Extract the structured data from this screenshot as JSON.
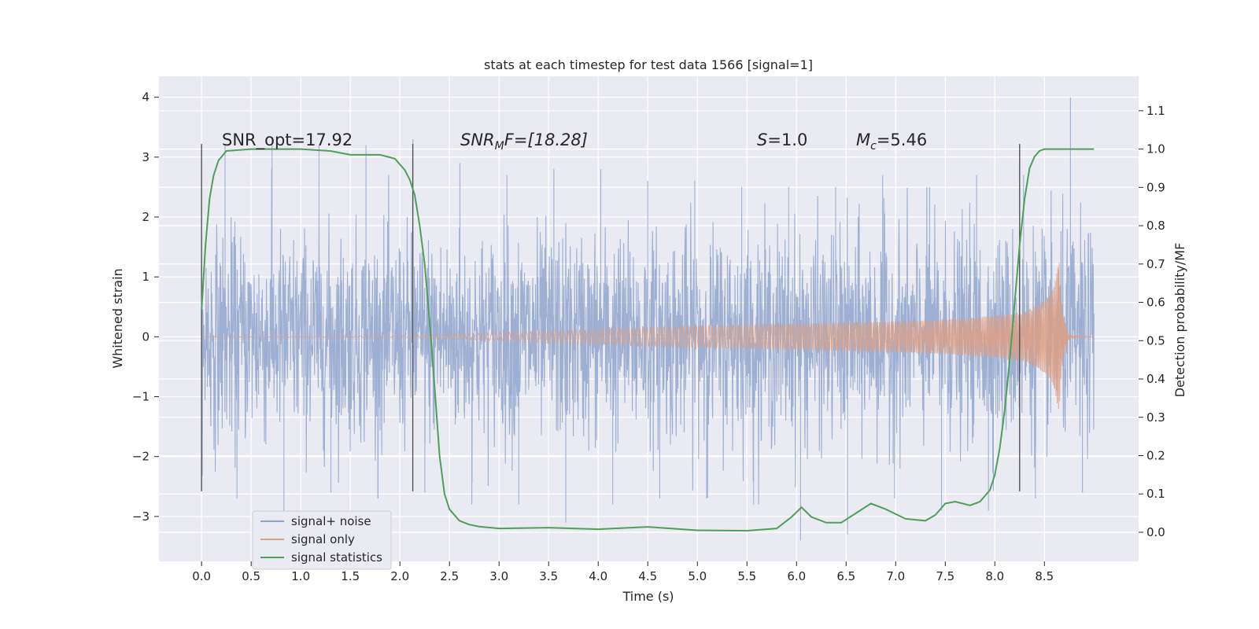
{
  "chart_data": {
    "type": "line",
    "title": "stats at each timestep for test data 1566 [signal=1]",
    "xlabel": "Time (s)",
    "ylabel": "Whitened strain",
    "y2label": "Detection probability/MF",
    "xlim": [
      -0.43,
      9.45
    ],
    "ylim": [
      -3.75,
      4.35
    ],
    "y2lim": [
      -0.076,
      1.19
    ],
    "x_ticks": [
      "0.0",
      "0.5",
      "1.0",
      "1.5",
      "2.0",
      "2.5",
      "3.0",
      "3.5",
      "4.0",
      "4.5",
      "5.0",
      "5.5",
      "6.0",
      "6.5",
      "7.0",
      "7.5",
      "8.0",
      "8.5"
    ],
    "y_ticks": [
      "4",
      "3",
      "2",
      "1",
      "0",
      "−1",
      "−2",
      "−3"
    ],
    "y2_ticks": [
      "1.1",
      "1.0",
      "0.9",
      "0.8",
      "0.7",
      "0.6",
      "0.5",
      "0.4",
      "0.3",
      "0.2",
      "0.1",
      "0.0"
    ],
    "grid": true,
    "legend_position": "bottom-left",
    "annotations": {
      "snr_opt": "SNR_opt=17.92",
      "snr_mf_prefix": "SNR",
      "snr_mf_sub": "M",
      "snr_mf_suffix": "F=[18.28]",
      "s_symbol": "S",
      "s_value": "=1.0",
      "mc_symbol": "M",
      "mc_sub": "c",
      "mc_value": "=5.46"
    },
    "vlines_x": [
      0.0,
      2.13,
      8.25
    ],
    "series": [
      {
        "name": "signal+ noise",
        "color": "#8fa5cc",
        "x_range": [
          0.0,
          9.0
        ],
        "amplitude_std": 0.95,
        "envelope_max": [
          3.2,
          3.3,
          3.2,
          3.2,
          3.3,
          2.9,
          2.7,
          2.8,
          2.8,
          2.6,
          2.6,
          2.5,
          2.5,
          2.5,
          2.7,
          2.5,
          2.7,
          2.7,
          4.0
        ],
        "envelope_min": [
          -2.7,
          -2.9,
          -2.6,
          -2.7,
          -2.6,
          -2.8,
          -2.8,
          -3.1,
          -2.8,
          -2.7,
          -2.7,
          -2.8,
          -3.4,
          -3.3,
          -2.7,
          -2.9,
          -2.9,
          -2.7,
          -2.6
        ]
      },
      {
        "name": "signal only",
        "color": "#dd9f84",
        "x_range": [
          0.0,
          9.0
        ],
        "envelope": {
          "x": [
            0.0,
            2.0,
            3.0,
            4.0,
            5.0,
            6.0,
            7.0,
            7.5,
            8.0,
            8.3,
            8.5,
            8.6,
            8.65,
            8.68,
            8.75,
            9.0
          ],
          "amp": [
            0.0,
            0.01,
            0.07,
            0.13,
            0.18,
            0.22,
            0.26,
            0.29,
            0.35,
            0.42,
            0.6,
            0.85,
            1.3,
            0.4,
            0.02,
            0.0
          ]
        }
      },
      {
        "name": "signal statistics",
        "color": "#4f9e5b",
        "x": [
          0.0,
          0.04,
          0.08,
          0.12,
          0.17,
          0.25,
          0.5,
          1.0,
          1.3,
          1.5,
          1.6,
          1.8,
          1.95,
          2.0,
          2.05,
          2.1,
          2.15,
          2.2,
          2.25,
          2.3,
          2.35,
          2.4,
          2.45,
          2.5,
          2.6,
          2.7,
          2.8,
          3.0,
          3.5,
          4.0,
          4.5,
          5.0,
          5.5,
          5.8,
          5.95,
          6.05,
          6.15,
          6.3,
          6.45,
          6.6,
          6.75,
          6.9,
          7.1,
          7.3,
          7.4,
          7.5,
          7.6,
          7.75,
          7.85,
          7.95,
          8.0,
          8.05,
          8.1,
          8.15,
          8.2,
          8.25,
          8.3,
          8.35,
          8.4,
          8.45,
          8.5,
          9.0
        ],
        "y": [
          0.58,
          0.75,
          0.87,
          0.93,
          0.97,
          0.995,
          1.0,
          1.0,
          0.995,
          0.985,
          0.985,
          0.985,
          0.975,
          0.96,
          0.945,
          0.92,
          0.88,
          0.8,
          0.7,
          0.55,
          0.38,
          0.2,
          0.1,
          0.06,
          0.03,
          0.02,
          0.015,
          0.01,
          0.012,
          0.008,
          0.014,
          0.005,
          0.004,
          0.01,
          0.04,
          0.065,
          0.04,
          0.025,
          0.025,
          0.05,
          0.075,
          0.06,
          0.035,
          0.03,
          0.045,
          0.075,
          0.08,
          0.07,
          0.08,
          0.11,
          0.15,
          0.22,
          0.32,
          0.45,
          0.6,
          0.75,
          0.87,
          0.95,
          0.98,
          0.995,
          1.0,
          1.0
        ]
      }
    ]
  }
}
